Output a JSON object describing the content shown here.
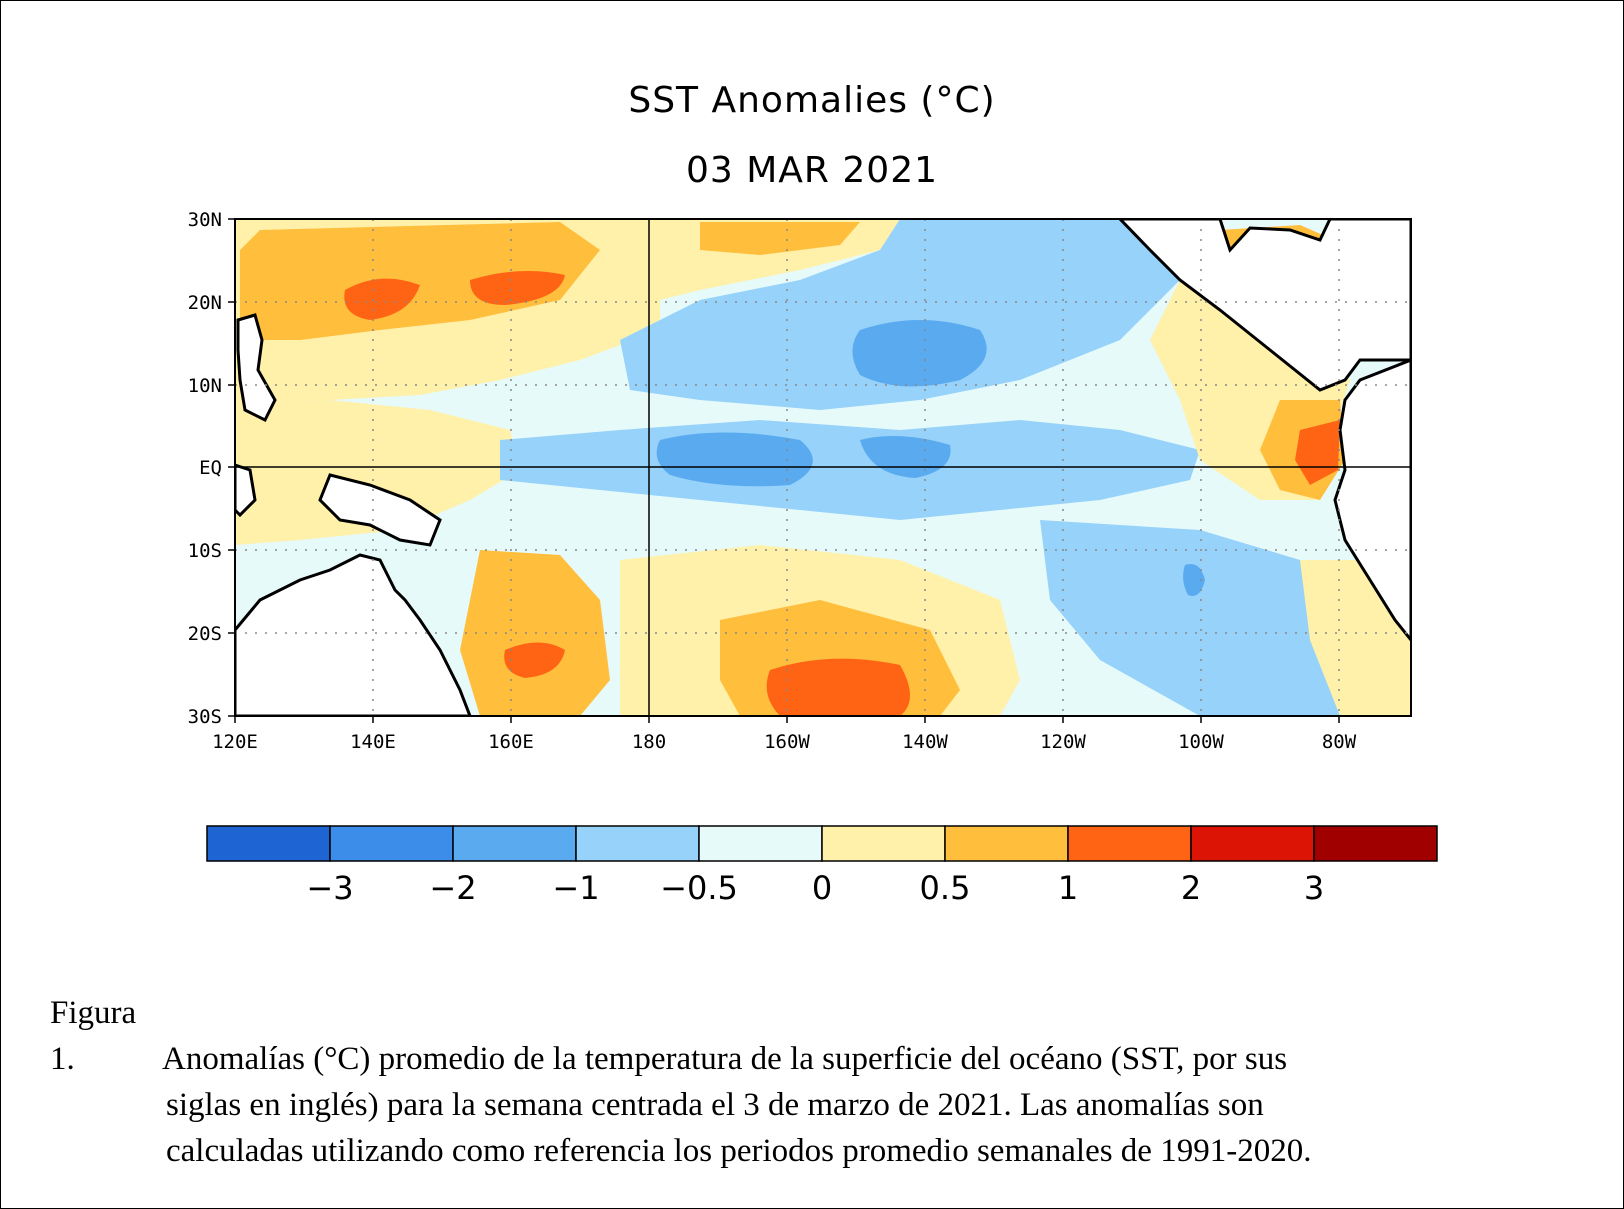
{
  "map": {
    "title": "SST Anomalies (°C)",
    "date": "03 MAR 2021",
    "lat_labels": [
      "30N",
      "20N",
      "10N",
      "EQ",
      "10S",
      "20S",
      "30S"
    ],
    "lon_labels": [
      "120E",
      "140E",
      "160E",
      "180",
      "160W",
      "140W",
      "120W",
      "100W",
      "80W"
    ],
    "lat_range": [
      -30,
      30
    ],
    "lon_range": [
      120,
      290
    ],
    "colorbar": {
      "colors": [
        "#1e64d2",
        "#3c8cea",
        "#5aaaf0",
        "#96d2fa",
        "#e6fafa",
        "#fff0aa",
        "#ffbe3c",
        "#ff6414",
        "#dc1405",
        "#a00000"
      ],
      "labels": [
        "−3",
        "−2",
        "−1",
        "−0.5",
        "0",
        "0.5",
        "1",
        "2",
        "3"
      ]
    }
  },
  "caption": {
    "label": "Figura 1.",
    "line1": "Anomalías (°C) promedio de la temperatura de la superficie del océano (SST, por sus",
    "line2": "siglas en inglés) para la semana centrada el 3 de marzo de 2021. Las anomalías son",
    "line3": "calculadas utilizando como referencia los periodos promedio semanales de 1991-2020."
  }
}
